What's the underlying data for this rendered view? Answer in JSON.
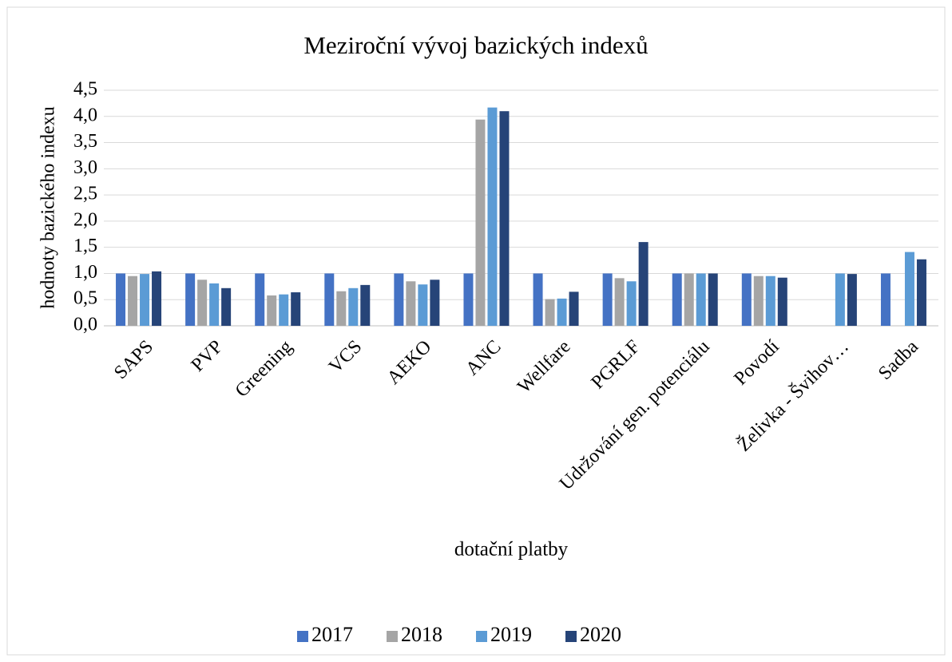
{
  "chart_data": {
    "type": "bar",
    "title": "Meziroční vývoj bazických indexů",
    "x_label": "dotační platby",
    "y_label": "hodnoty bazického indexu",
    "categories": [
      "SAPS",
      "PVP",
      "Greening",
      "VCS",
      "AEKO",
      "ANC",
      "Wellfare",
      "PGRLF",
      "Udržování gen. potenciálu",
      "Povodí",
      "Želivka - Švihov…",
      "Sadba"
    ],
    "series": [
      {
        "name": "2017",
        "color": "#4472c4",
        "values": [
          1.0,
          1.0,
          1.0,
          1.0,
          1.0,
          1.0,
          1.0,
          1.0,
          1.0,
          1.0,
          null,
          1.0
        ]
      },
      {
        "name": "2018",
        "color": "#a5a5a5",
        "values": [
          0.95,
          0.88,
          0.58,
          0.66,
          0.85,
          3.94,
          0.51,
          0.91,
          1.0,
          0.95,
          null,
          null
        ]
      },
      {
        "name": "2019",
        "color": "#5b9bd5",
        "values": [
          0.99,
          0.81,
          0.6,
          0.72,
          0.79,
          4.17,
          0.52,
          0.85,
          1.0,
          0.95,
          1.0,
          1.41
        ]
      },
      {
        "name": "2020",
        "color": "#264478",
        "values": [
          1.04,
          0.72,
          0.64,
          0.78,
          0.88,
          4.1,
          0.65,
          1.6,
          1.0,
          0.92,
          0.99,
          1.27
        ]
      }
    ],
    "ylim": [
      0,
      4.5
    ],
    "yticks": [
      {
        "value": 0,
        "label": "0,0"
      },
      {
        "value": 0.5,
        "label": "0,5"
      },
      {
        "value": 1,
        "label": "1,0"
      },
      {
        "value": 1.5,
        "label": "1,5"
      },
      {
        "value": 2,
        "label": "2,0"
      },
      {
        "value": 2.5,
        "label": "2,5"
      },
      {
        "value": 3,
        "label": "3,0"
      },
      {
        "value": 3.5,
        "label": "3,5"
      },
      {
        "value": 4,
        "label": "4,0"
      },
      {
        "value": 4.5,
        "label": "4,5"
      }
    ],
    "grid": true,
    "legend": "bottom"
  }
}
